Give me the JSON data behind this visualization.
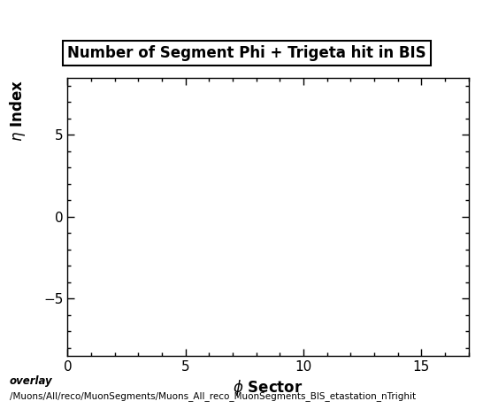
{
  "title": "Number of Segment Phi + Trigeta hit in BIS",
  "xlabel": "$\\phi$ Sector",
  "ylabel": "$\\eta$ Index",
  "xlim": [
    0,
    17
  ],
  "ylim": [
    -8.5,
    8.5
  ],
  "xticks": [
    0,
    5,
    10,
    15
  ],
  "yticks": [
    -5,
    0,
    5
  ],
  "annotation_line1": "overlay",
  "annotation_line2": "/Muons/All/reco/MuonSegments/Muons_All_reco_MuonSegments_BIS_etastation_nTrighit",
  "bg_color": "#ffffff",
  "title_fontsize": 12,
  "axis_label_fontsize": 12,
  "tick_fontsize": 11,
  "annotation_fontsize": 8.5
}
